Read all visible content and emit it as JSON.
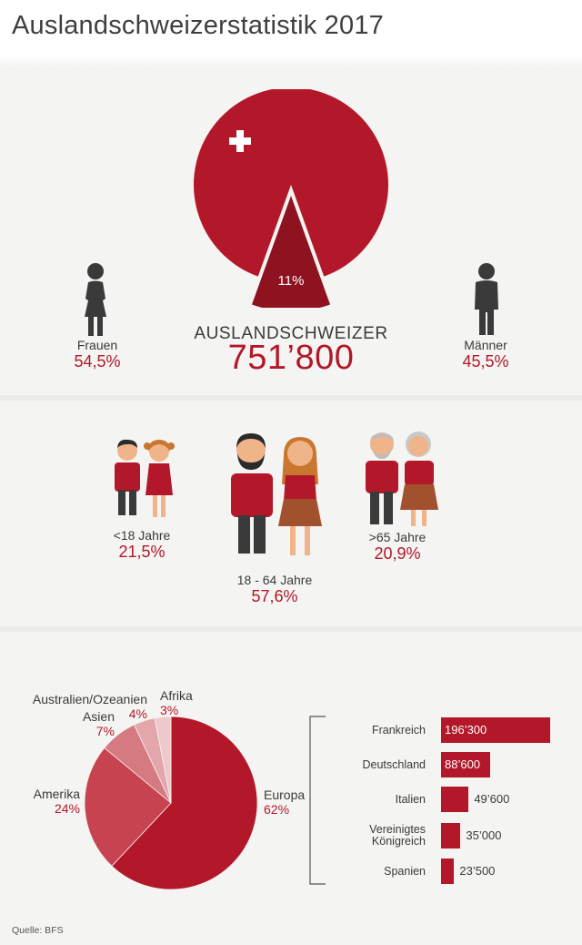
{
  "title": "Auslandschweizerstatistik 2017",
  "colors": {
    "red": "#b3182a",
    "dark_red": "#8e1220",
    "mid_red": "#c7434f",
    "light_red": "#d67a81",
    "pale_red": "#e3a6aa",
    "paler_red": "#eec8ca",
    "background": "#f4f4f2"
  },
  "total": {
    "label": "AUSLANDSCHWEIZER",
    "value": "751’800",
    "highlight_pct": "11%",
    "highlight_fraction": 0.11
  },
  "gender": {
    "women": {
      "label": "Frauen",
      "pct": "54,5%",
      "icon": "woman-icon"
    },
    "men": {
      "label": "Männer",
      "pct": "45,5%",
      "icon": "man-icon"
    }
  },
  "age_groups": [
    {
      "label": "<18 Jahre",
      "pct": "21,5%"
    },
    {
      "label": "18 - 64 Jahre",
      "pct": "57,6%"
    },
    {
      "label": ">65 Jahre",
      "pct": "20,9%"
    }
  ],
  "source": "Quelle: BFS",
  "chart_data": [
    {
      "type": "pie",
      "labels": [
        "Europa",
        "Amerika",
        "Asien",
        "Australien/Ozeanien",
        "Afrika"
      ],
      "values": [
        62,
        24,
        7,
        4,
        3
      ],
      "value_labels": [
        "62%",
        "24%",
        "7%",
        "4%",
        "3%"
      ],
      "colors": [
        "#b3182a",
        "#c7434f",
        "#d67a81",
        "#e3a6aa",
        "#eec8ca"
      ]
    },
    {
      "type": "bar",
      "orientation": "horizontal",
      "categories": [
        "Frankreich",
        "Deutschland",
        "Italien",
        "Vereinigtes\nKönigreich",
        "Spanien"
      ],
      "values": [
        196300,
        88600,
        49600,
        35000,
        23500
      ],
      "value_labels": [
        "196’300",
        "88’600",
        "49’600",
        "35’000",
        "23’500"
      ]
    }
  ]
}
